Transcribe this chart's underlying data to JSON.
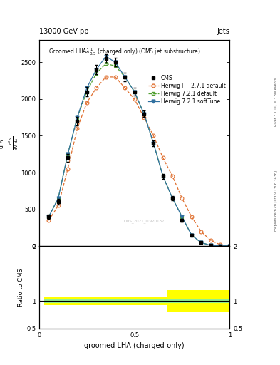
{
  "title_top": "13000 GeV pp",
  "title_right": "Jets",
  "plot_title": "Groomed LHA$\\lambda^{1}_{0.5}$ (charged only) (CMS jet substructure)",
  "xlabel": "groomed LHA (charged-only)",
  "ylabel_ratio": "Ratio to CMS",
  "watermark": "CMS_2021_I1920187",
  "right_label": "mcplots.cern.ch [arXiv:1306.3436]",
  "right_label2": "Rivet 3.1.10, ≥ 3.3M events",
  "x": [
    0.05,
    0.1,
    0.15,
    0.2,
    0.25,
    0.3,
    0.35,
    0.4,
    0.45,
    0.5,
    0.55,
    0.6,
    0.65,
    0.7,
    0.75,
    0.8,
    0.85,
    0.9,
    0.95,
    1.0
  ],
  "cms_y": [
    400,
    600,
    1200,
    1700,
    2100,
    2400,
    2550,
    2500,
    2300,
    2100,
    1800,
    1400,
    950,
    650,
    350,
    150,
    50,
    10,
    5,
    5
  ],
  "cms_yerr": [
    30,
    40,
    50,
    60,
    60,
    60,
    60,
    60,
    55,
    50,
    45,
    40,
    35,
    30,
    20,
    15,
    8,
    4,
    3,
    3
  ],
  "hppdef_y": [
    350,
    550,
    1050,
    1600,
    1950,
    2150,
    2300,
    2300,
    2150,
    2000,
    1750,
    1500,
    1200,
    950,
    650,
    400,
    200,
    80,
    20,
    5
  ],
  "h721def_y": [
    400,
    650,
    1250,
    1750,
    2100,
    2350,
    2480,
    2450,
    2300,
    2100,
    1800,
    1400,
    950,
    650,
    400,
    150,
    50,
    10,
    5,
    5
  ],
  "h721soft_y": [
    400,
    650,
    1250,
    1750,
    2150,
    2400,
    2580,
    2500,
    2300,
    2100,
    1800,
    1400,
    950,
    650,
    400,
    150,
    50,
    10,
    5,
    5
  ],
  "cms_color": "#000000",
  "hppdef_color": "#e07030",
  "h721def_color": "#50a030",
  "h721soft_color": "#3070a0",
  "ratio_yellow_band_lo": [
    0.93,
    0.93,
    0.93,
    0.93,
    0.93,
    0.93,
    0.93,
    0.93,
    0.93,
    0.93,
    0.93,
    0.93,
    0.93,
    0.8,
    0.8,
    0.8,
    0.8,
    0.8,
    0.8,
    0.8
  ],
  "ratio_yellow_band_hi": [
    1.07,
    1.07,
    1.07,
    1.07,
    1.07,
    1.07,
    1.07,
    1.07,
    1.07,
    1.07,
    1.07,
    1.07,
    1.07,
    1.2,
    1.2,
    1.2,
    1.2,
    1.2,
    1.2,
    1.2
  ],
  "ratio_green_band_lo": [
    0.97,
    0.97,
    0.97,
    0.97,
    0.97,
    0.97,
    0.97,
    0.97,
    0.97,
    0.97,
    0.97,
    0.97,
    0.97,
    0.97,
    0.97,
    0.97,
    0.97,
    0.97,
    0.97,
    0.97
  ],
  "ratio_green_band_hi": [
    1.03,
    1.03,
    1.03,
    1.03,
    1.03,
    1.03,
    1.03,
    1.03,
    1.03,
    1.03,
    1.03,
    1.03,
    1.03,
    1.03,
    1.03,
    1.03,
    1.03,
    1.03,
    1.03,
    1.03
  ],
  "ylim_main": [
    0,
    2800
  ],
  "yticks_main": [
    0,
    500,
    1000,
    1500,
    2000,
    2500
  ],
  "ytick_labels_main": [
    "0",
    "500",
    "1000",
    "1500",
    "2000",
    "2500"
  ],
  "ylim_ratio": [
    0.5,
    2.0
  ],
  "yticks_ratio": [
    2.0,
    1.0,
    0.5
  ],
  "ytick_labels_ratio": [
    "2",
    "1",
    "0.5"
  ],
  "xticks": [
    0,
    0.5,
    1.0
  ],
  "xtick_labels": [
    "0",
    "0.5",
    "1"
  ],
  "background_color": "#ffffff"
}
